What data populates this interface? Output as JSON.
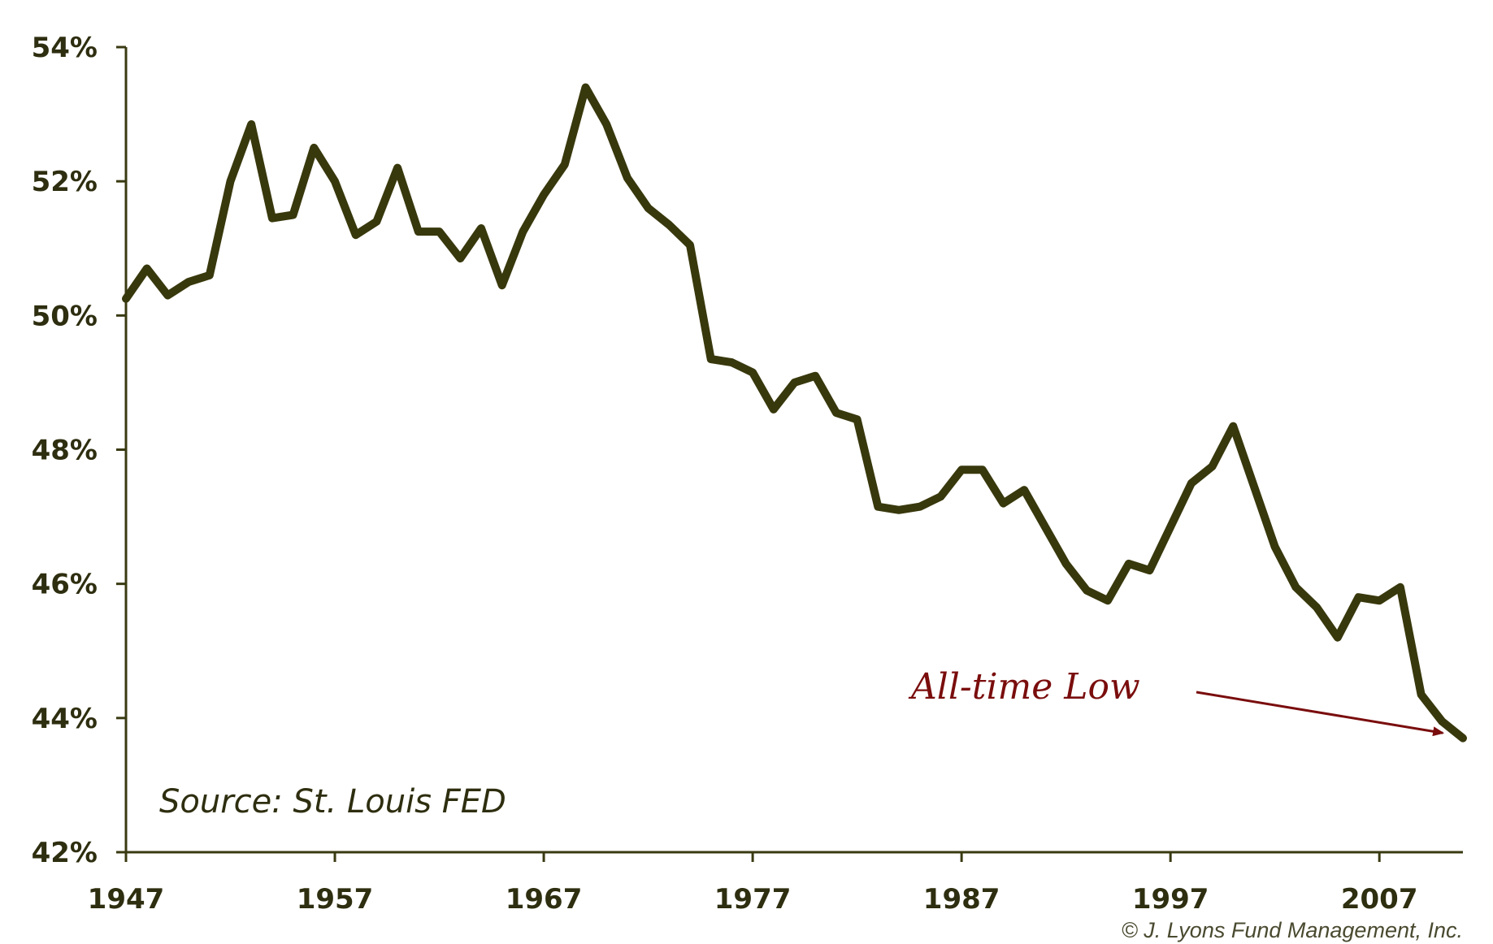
{
  "chart_data": {
    "type": "line",
    "title": "",
    "xlabel": "",
    "ylabel": "",
    "xlim": [
      1947,
      2011
    ],
    "ylim": [
      42,
      54
    ],
    "y_ticks": [
      42,
      44,
      46,
      48,
      50,
      52,
      54
    ],
    "y_tick_labels": [
      "42%",
      "44%",
      "46%",
      "48%",
      "50%",
      "52%",
      "54%"
    ],
    "x_ticks": [
      1947,
      1957,
      1967,
      1977,
      1987,
      1997,
      2007
    ],
    "x_tick_labels": [
      "1947",
      "1957",
      "1967",
      "1977",
      "1987",
      "1997",
      "2007"
    ],
    "grid": false,
    "color": "#38380d",
    "series": [
      {
        "name": "Series 1",
        "x": [
          1947,
          1948,
          1949,
          1950,
          1951,
          1952,
          1953,
          1954,
          1955,
          1956,
          1957,
          1958,
          1959,
          1960,
          1961,
          1962,
          1963,
          1964,
          1965,
          1966,
          1967,
          1968,
          1969,
          1970,
          1971,
          1972,
          1973,
          1974,
          1975,
          1976,
          1977,
          1978,
          1979,
          1980,
          1981,
          1982,
          1983,
          1984,
          1985,
          1986,
          1987,
          1988,
          1989,
          1990,
          1991,
          1992,
          1993,
          1994,
          1995,
          1996,
          1997,
          1998,
          1999,
          2000,
          2001,
          2002,
          2003,
          2004,
          2005,
          2006,
          2007,
          2008,
          2009,
          2010,
          2011
        ],
        "values": [
          50.25,
          50.7,
          50.3,
          50.5,
          50.6,
          52.0,
          52.85,
          51.45,
          51.5,
          52.5,
          52.0,
          51.2,
          51.4,
          52.2,
          51.25,
          51.25,
          50.85,
          51.3,
          50.45,
          51.25,
          51.8,
          52.25,
          53.4,
          52.85,
          52.05,
          51.6,
          51.35,
          51.05,
          49.35,
          49.3,
          49.15,
          48.6,
          49.0,
          49.1,
          48.55,
          48.45,
          47.15,
          47.1,
          47.15,
          47.3,
          47.7,
          47.7,
          47.2,
          47.4,
          46.85,
          46.3,
          45.9,
          45.75,
          46.3,
          46.2,
          46.85,
          47.5,
          47.75,
          48.35,
          47.45,
          46.55,
          45.95,
          45.65,
          45.2,
          45.8,
          45.75,
          45.95,
          44.35,
          43.95,
          43.7
        ]
      }
    ],
    "annotations": [
      {
        "text": "All-time Low",
        "points_to_year": 2010.5,
        "points_to_value": 43.85,
        "color": "#7a0d0d"
      },
      {
        "text": "Source: St. Louis FED"
      }
    ]
  },
  "footer": {
    "copyright": "© J. Lyons Fund Management, Inc."
  }
}
